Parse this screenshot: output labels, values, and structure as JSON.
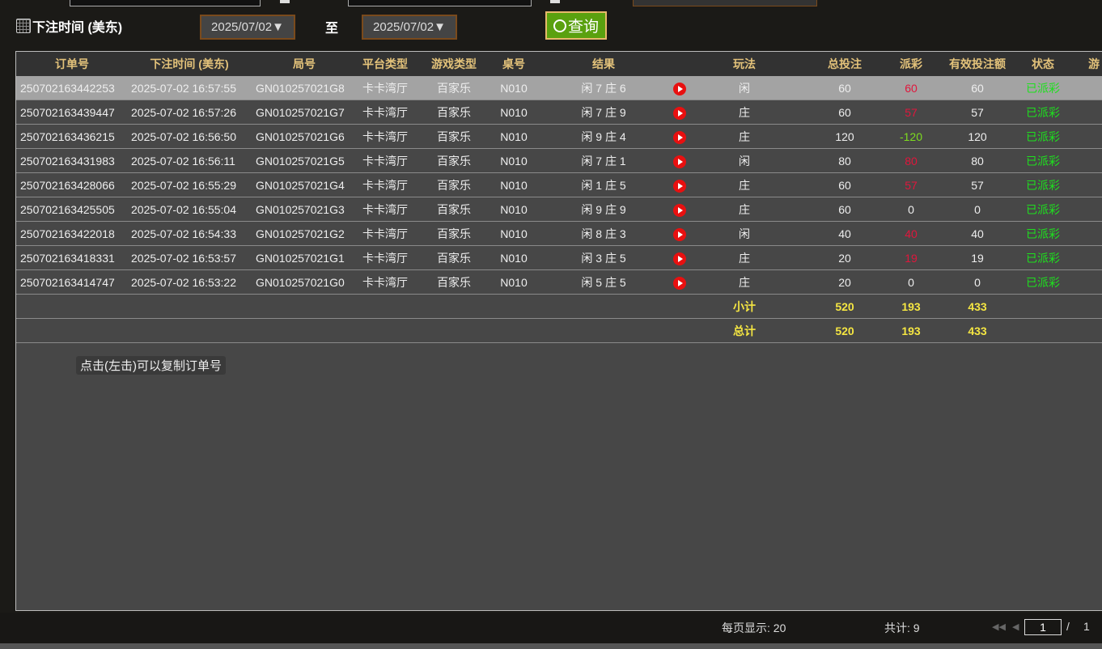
{
  "filter": {
    "label": "下注时间 (美东)",
    "start_date": "2025/07/02▼",
    "to_label": "至",
    "end_date": "2025/07/02▼",
    "query_label": "查询"
  },
  "table": {
    "headers": [
      "订单号",
      "下注时间 (美东)",
      "局号",
      "平台类型",
      "游戏类型",
      "桌号",
      "结果",
      "",
      "玩法",
      "总投注",
      "派彩",
      "有效投注额",
      "状态",
      "游"
    ],
    "rows": [
      {
        "order": "250702163442253",
        "time": "2025-07-02 16:57:55",
        "round": "GN010257021G8",
        "platform": "卡卡湾厅",
        "game": "百家乐",
        "table": "N010",
        "result": "闲 7 庄 6",
        "play": "闲",
        "bet": "60",
        "payout": "60",
        "payout_color": "red",
        "valid": "60",
        "status": "已派彩"
      },
      {
        "order": "250702163439447",
        "time": "2025-07-02 16:57:26",
        "round": "GN010257021G7",
        "platform": "卡卡湾厅",
        "game": "百家乐",
        "table": "N010",
        "result": "闲 7 庄 9",
        "play": "庄",
        "bet": "60",
        "payout": "57",
        "payout_color": "red",
        "valid": "57",
        "status": "已派彩"
      },
      {
        "order": "250702163436215",
        "time": "2025-07-02 16:56:50",
        "round": "GN010257021G6",
        "platform": "卡卡湾厅",
        "game": "百家乐",
        "table": "N010",
        "result": "闲 9 庄 4",
        "play": "庄",
        "bet": "120",
        "payout": "-120",
        "payout_color": "green",
        "valid": "120",
        "status": "已派彩"
      },
      {
        "order": "250702163431983",
        "time": "2025-07-02 16:56:11",
        "round": "GN010257021G5",
        "platform": "卡卡湾厅",
        "game": "百家乐",
        "table": "N010",
        "result": "闲 7 庄 1",
        "play": "闲",
        "bet": "80",
        "payout": "80",
        "payout_color": "red",
        "valid": "80",
        "status": "已派彩"
      },
      {
        "order": "250702163428066",
        "time": "2025-07-02 16:55:29",
        "round": "GN010257021G4",
        "platform": "卡卡湾厅",
        "game": "百家乐",
        "table": "N010",
        "result": "闲 1 庄 5",
        "play": "庄",
        "bet": "60",
        "payout": "57",
        "payout_color": "red",
        "valid": "57",
        "status": "已派彩"
      },
      {
        "order": "250702163425505",
        "time": "2025-07-02 16:55:04",
        "round": "GN010257021G3",
        "platform": "卡卡湾厅",
        "game": "百家乐",
        "table": "N010",
        "result": "闲 9 庄 9",
        "play": "庄",
        "bet": "60",
        "payout": "0",
        "payout_color": "white",
        "valid": "0",
        "status": "已派彩"
      },
      {
        "order": "250702163422018",
        "time": "2025-07-02 16:54:33",
        "round": "GN010257021G2",
        "platform": "卡卡湾厅",
        "game": "百家乐",
        "table": "N010",
        "result": "闲 8 庄 3",
        "play": "闲",
        "bet": "40",
        "payout": "40",
        "payout_color": "red",
        "valid": "40",
        "status": "已派彩"
      },
      {
        "order": "250702163418331",
        "time": "2025-07-02 16:53:57",
        "round": "GN010257021G1",
        "platform": "卡卡湾厅",
        "game": "百家乐",
        "table": "N010",
        "result": "闲 3 庄 5",
        "play": "庄",
        "bet": "20",
        "payout": "19",
        "payout_color": "red",
        "valid": "19",
        "status": "已派彩"
      },
      {
        "order": "250702163414747",
        "time": "2025-07-02 16:53:22",
        "round": "GN010257021G0",
        "platform": "卡卡湾厅",
        "game": "百家乐",
        "table": "N010",
        "result": "闲 5 庄 5",
        "play": "庄",
        "bet": "20",
        "payout": "0",
        "payout_color": "white",
        "valid": "0",
        "status": "已派彩"
      }
    ],
    "subtotal": {
      "label": "小计",
      "bet": "520",
      "payout": "193",
      "valid": "433"
    },
    "total": {
      "label": "总计",
      "bet": "520",
      "payout": "193",
      "valid": "433"
    }
  },
  "tooltip": "点击(左击)可以复制订单号",
  "footer": {
    "per_page": "每页显示: 20",
    "total": "共计: 9",
    "page": "1",
    "page_sep": "/",
    "page_count": "1"
  },
  "colors": {
    "red": "#e0163c",
    "green": "#7ddc1f",
    "status": "#1ee01e",
    "header": "#e3c27a",
    "sum": "#f5e642"
  }
}
